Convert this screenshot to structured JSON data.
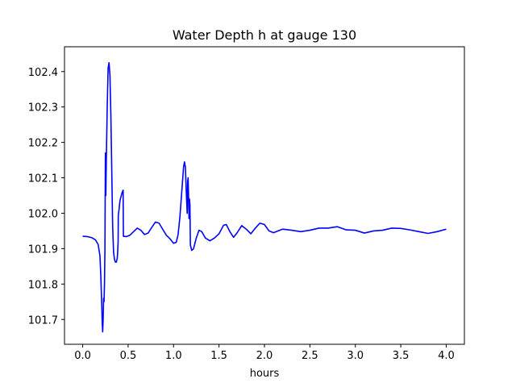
{
  "chart_data": {
    "type": "line",
    "title": "Water Depth h at gauge 130",
    "xlabel": "hours",
    "ylabel": "",
    "xlim": [
      -0.2,
      4.2
    ],
    "ylim": [
      101.63,
      102.47
    ],
    "grid": false,
    "x_ticks": [
      0.0,
      0.5,
      1.0,
      1.5,
      2.0,
      2.5,
      3.0,
      3.5,
      4.0
    ],
    "x_tick_labels": [
      "0.0",
      "0.5",
      "1.0",
      "1.5",
      "2.0",
      "2.5",
      "3.0",
      "3.5",
      "4.0"
    ],
    "y_ticks": [
      101.7,
      101.8,
      101.9,
      102.0,
      102.1,
      102.2,
      102.3,
      102.4
    ],
    "y_tick_labels": [
      "101.7",
      "101.8",
      "101.9",
      "102.0",
      "102.1",
      "102.2",
      "102.3",
      "102.4"
    ],
    "series": [
      {
        "color": "#0000ff",
        "points": [
          [
            0.0,
            101.935
          ],
          [
            0.05,
            101.934
          ],
          [
            0.1,
            101.931
          ],
          [
            0.14,
            101.925
          ],
          [
            0.17,
            101.912
          ],
          [
            0.19,
            101.88
          ],
          [
            0.2,
            101.82
          ],
          [
            0.21,
            101.74
          ],
          [
            0.215,
            101.69
          ],
          [
            0.22,
            101.665
          ],
          [
            0.225,
            101.7
          ],
          [
            0.23,
            101.76
          ],
          [
            0.235,
            101.75
          ],
          [
            0.24,
            101.8
          ],
          [
            0.245,
            101.9
          ],
          [
            0.25,
            102.17
          ],
          [
            0.255,
            102.05
          ],
          [
            0.26,
            102.15
          ],
          [
            0.27,
            102.3
          ],
          [
            0.28,
            102.41
          ],
          [
            0.29,
            102.425
          ],
          [
            0.3,
            102.39
          ],
          [
            0.31,
            102.28
          ],
          [
            0.32,
            102.12
          ],
          [
            0.33,
            101.96
          ],
          [
            0.34,
            101.89
          ],
          [
            0.35,
            101.87
          ],
          [
            0.36,
            101.862
          ],
          [
            0.37,
            101.862
          ],
          [
            0.38,
            101.872
          ],
          [
            0.385,
            101.89
          ],
          [
            0.39,
            101.92
          ],
          [
            0.392,
            101.995
          ],
          [
            0.4,
            102.01
          ],
          [
            0.41,
            102.035
          ],
          [
            0.42,
            102.045
          ],
          [
            0.43,
            102.055
          ],
          [
            0.44,
            102.062
          ],
          [
            0.445,
            102.065
          ],
          [
            0.448,
            101.935
          ],
          [
            0.48,
            101.934
          ],
          [
            0.52,
            101.938
          ],
          [
            0.56,
            101.948
          ],
          [
            0.6,
            101.958
          ],
          [
            0.64,
            101.952
          ],
          [
            0.68,
            101.94
          ],
          [
            0.72,
            101.944
          ],
          [
            0.76,
            101.96
          ],
          [
            0.8,
            101.975
          ],
          [
            0.84,
            101.972
          ],
          [
            0.88,
            101.955
          ],
          [
            0.92,
            101.938
          ],
          [
            0.96,
            101.928
          ],
          [
            1.0,
            101.915
          ],
          [
            1.03,
            101.918
          ],
          [
            1.05,
            101.94
          ],
          [
            1.07,
            101.99
          ],
          [
            1.09,
            102.06
          ],
          [
            1.11,
            102.13
          ],
          [
            1.12,
            102.145
          ],
          [
            1.13,
            102.13
          ],
          [
            1.14,
            102.06
          ],
          [
            1.15,
            102.0
          ],
          [
            1.155,
            102.09
          ],
          [
            1.16,
            102.1
          ],
          [
            1.165,
            102.05
          ],
          [
            1.17,
            101.985
          ],
          [
            1.175,
            102.04
          ],
          [
            1.18,
            102.025
          ],
          [
            1.185,
            101.91
          ],
          [
            1.2,
            101.895
          ],
          [
            1.22,
            101.9
          ],
          [
            1.25,
            101.93
          ],
          [
            1.28,
            101.952
          ],
          [
            1.31,
            101.948
          ],
          [
            1.35,
            101.93
          ],
          [
            1.4,
            101.922
          ],
          [
            1.45,
            101.93
          ],
          [
            1.5,
            101.942
          ],
          [
            1.55,
            101.966
          ],
          [
            1.58,
            101.968
          ],
          [
            1.62,
            101.948
          ],
          [
            1.66,
            101.932
          ],
          [
            1.7,
            101.945
          ],
          [
            1.75,
            101.965
          ],
          [
            1.8,
            101.955
          ],
          [
            1.85,
            101.942
          ],
          [
            1.9,
            101.958
          ],
          [
            1.95,
            101.972
          ],
          [
            2.0,
            101.968
          ],
          [
            2.05,
            101.95
          ],
          [
            2.1,
            101.945
          ],
          [
            2.15,
            101.95
          ],
          [
            2.2,
            101.955
          ],
          [
            2.3,
            101.952
          ],
          [
            2.4,
            101.948
          ],
          [
            2.5,
            101.952
          ],
          [
            2.6,
            101.958
          ],
          [
            2.7,
            101.958
          ],
          [
            2.8,
            101.962
          ],
          [
            2.9,
            101.953
          ],
          [
            3.0,
            101.952
          ],
          [
            3.1,
            101.944
          ],
          [
            3.2,
            101.95
          ],
          [
            3.3,
            101.952
          ],
          [
            3.4,
            101.958
          ],
          [
            3.5,
            101.957
          ],
          [
            3.6,
            101.953
          ],
          [
            3.7,
            101.948
          ],
          [
            3.8,
            101.943
          ],
          [
            3.9,
            101.948
          ],
          [
            4.0,
            101.955
          ]
        ]
      }
    ]
  }
}
